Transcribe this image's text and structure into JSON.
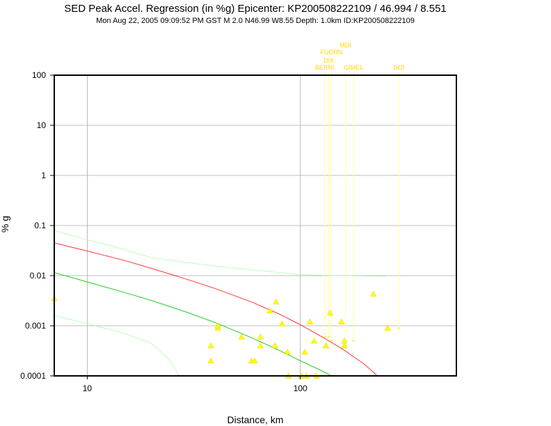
{
  "title": "SED Peak Accel. Regression (in %g) Epicenter: KP200508222109 / 46.994 / 8.551",
  "subtitle": "Mon Aug 22, 2005 09:09:52 PM GST   M 2.0   N46.99 W8.55   Depth: 1.0km   ID:KP200508222109",
  "chart_data": {
    "type": "scatter",
    "xlabel": "Distance, km",
    "ylabel": "% g",
    "xscale": "log",
    "yscale": "log",
    "xlim": [
      7,
      540
    ],
    "ylim": [
      0.0001,
      100
    ],
    "x_ticks": [
      10,
      100
    ],
    "x_tick_labels": [
      "10",
      "100"
    ],
    "y_ticks": [
      0.0001,
      0.001,
      0.01,
      0.1,
      1,
      10,
      100
    ],
    "y_tick_labels": [
      "0.0001",
      "0.001",
      "0.01",
      "0.1",
      "1",
      "10",
      "100"
    ],
    "grid": true,
    "colors": {
      "points": "#ffff00",
      "point_outline": "#e6d000",
      "station_lines": "#ffff99",
      "station_labels": "#ffd800",
      "median_curve": "#ff3333",
      "lower_curve": "#22cc22",
      "sigma_curves": "#aaffaa",
      "grid": "#aaaaaa",
      "frame": "#000000"
    },
    "station_labels": [
      {
        "name": "BERNI",
        "x": 130
      },
      {
        "name": "DIX",
        "x": 136
      },
      {
        "name": "FUORN",
        "x": 140
      },
      {
        "name": "MDI",
        "x": 163
      },
      {
        "name": "GIMEL",
        "x": 178
      },
      {
        "name": "DOI",
        "x": 290
      }
    ],
    "points": [
      {
        "x": 7,
        "y": 0.0035
      },
      {
        "x": 38,
        "y": 0.0004
      },
      {
        "x": 38,
        "y": 0.0002
      },
      {
        "x": 41,
        "y": 0.0009
      },
      {
        "x": 41,
        "y": 0.001
      },
      {
        "x": 53,
        "y": 0.0006
      },
      {
        "x": 59,
        "y": 0.0002
      },
      {
        "x": 61,
        "y": 0.0002
      },
      {
        "x": 65,
        "y": 0.0006
      },
      {
        "x": 65,
        "y": 0.0004
      },
      {
        "x": 72,
        "y": 0.002
      },
      {
        "x": 76,
        "y": 0.0004
      },
      {
        "x": 77,
        "y": 0.003
      },
      {
        "x": 82,
        "y": 0.0011
      },
      {
        "x": 87,
        "y": 0.0003
      },
      {
        "x": 88,
        "y": 0.0001
      },
      {
        "x": 101,
        "y": 0.0001
      },
      {
        "x": 105,
        "y": 0.0003
      },
      {
        "x": 107,
        "y": 0.0001
      },
      {
        "x": 111,
        "y": 0.0012
      },
      {
        "x": 116,
        "y": 0.0005
      },
      {
        "x": 119,
        "y": 0.0001
      },
      {
        "x": 132,
        "y": 0.0004
      },
      {
        "x": 138,
        "y": 0.0018
      },
      {
        "x": 156,
        "y": 0.0012
      },
      {
        "x": 161,
        "y": 0.0005
      },
      {
        "x": 161,
        "y": 0.0004
      },
      {
        "x": 220,
        "y": 0.0043
      },
      {
        "x": 257,
        "y": 0.0009
      }
    ],
    "station_value_marks": [
      {
        "x": 130,
        "y": 0.0006
      },
      {
        "x": 136,
        "y": 0.0006
      },
      {
        "x": 140,
        "y": 0.0005
      },
      {
        "x": 163,
        "y": 0.0005
      },
      {
        "x": 178,
        "y": 0.0005
      },
      {
        "x": 290,
        "y": 0.0009
      }
    ],
    "curves": [
      {
        "name": "median",
        "x": [
          7,
          10,
          15,
          20,
          30,
          40,
          60,
          80,
          100,
          130,
          160,
          200,
          230
        ],
        "y": [
          0.045,
          0.031,
          0.02,
          0.014,
          0.0082,
          0.0055,
          0.0029,
          0.0017,
          0.00105,
          0.00056,
          0.00033,
          0.00017,
          0.0001
        ]
      },
      {
        "name": "lower",
        "x": [
          7,
          10,
          15,
          20,
          30,
          40,
          60,
          80,
          100,
          120,
          140
        ],
        "y": [
          0.0115,
          0.0075,
          0.0046,
          0.0032,
          0.0018,
          0.00115,
          0.00056,
          0.00032,
          0.0002,
          0.00014,
          0.0001
        ]
      },
      {
        "name": "upper-sigma",
        "x": [
          7,
          10,
          15,
          20,
          30,
          50,
          80,
          100,
          150,
          200,
          250
        ],
        "y": [
          0.08,
          0.052,
          0.033,
          0.023,
          0.018,
          0.014,
          0.0115,
          0.0105,
          0.01,
          0.0098,
          0.0097
        ]
      },
      {
        "name": "lower-sigma",
        "x": [
          7,
          10,
          15,
          20,
          24,
          27
        ],
        "y": [
          0.0016,
          0.0011,
          0.0007,
          0.00045,
          0.00022,
          0.0001
        ]
      }
    ]
  }
}
